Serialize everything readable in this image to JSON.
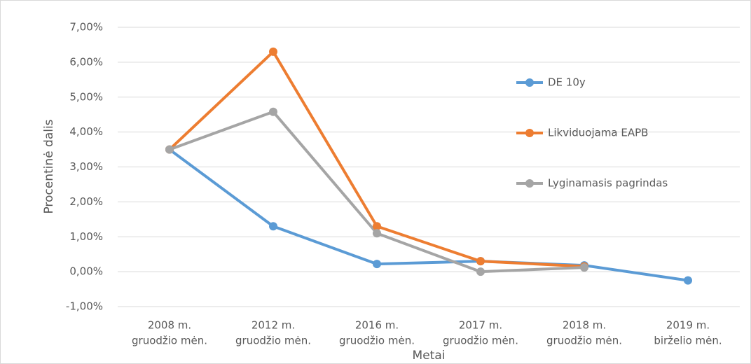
{
  "chart_data": {
    "type": "line",
    "y_label": "Procentinė dalis",
    "x_label": "Metai",
    "categories": [
      [
        "2008 m.",
        "gruodžio mėn."
      ],
      [
        "2012 m.",
        "gruodžio mėn."
      ],
      [
        "2016 m.",
        "gruodžio mėn."
      ],
      [
        "2017 m.",
        "gruodžio mėn."
      ],
      [
        "2018 m.",
        "gruodžio mėn."
      ],
      [
        "2019 m.",
        "birželio mėn."
      ]
    ],
    "series": [
      {
        "name": "DE 10y",
        "color": "#5b9bd5",
        "values": [
          3.5,
          1.3,
          0.22,
          0.3,
          0.18,
          -0.25
        ]
      },
      {
        "name": "Likviduojama EAPB",
        "color": "#ed7d31",
        "values": [
          3.5,
          6.3,
          1.3,
          0.3,
          0.15,
          null
        ]
      },
      {
        "name": "Lyginamasis pagrindas",
        "color": "#a5a5a5",
        "values": [
          3.5,
          4.58,
          1.1,
          0.0,
          0.12,
          null
        ]
      }
    ],
    "ylim": [
      -1,
      7
    ],
    "yticks": [
      {
        "value": -1,
        "label": "-1,00%"
      },
      {
        "value": 0,
        "label": "0,00%"
      },
      {
        "value": 1,
        "label": "1,00%"
      },
      {
        "value": 2,
        "label": "2,00%"
      },
      {
        "value": 3,
        "label": "3,00%"
      },
      {
        "value": 4,
        "label": "4,00%"
      },
      {
        "value": 5,
        "label": "5,00%"
      },
      {
        "value": 6,
        "label": "6,00%"
      },
      {
        "value": 7,
        "label": "7,00%"
      }
    ],
    "grid": true,
    "legend": "right"
  }
}
